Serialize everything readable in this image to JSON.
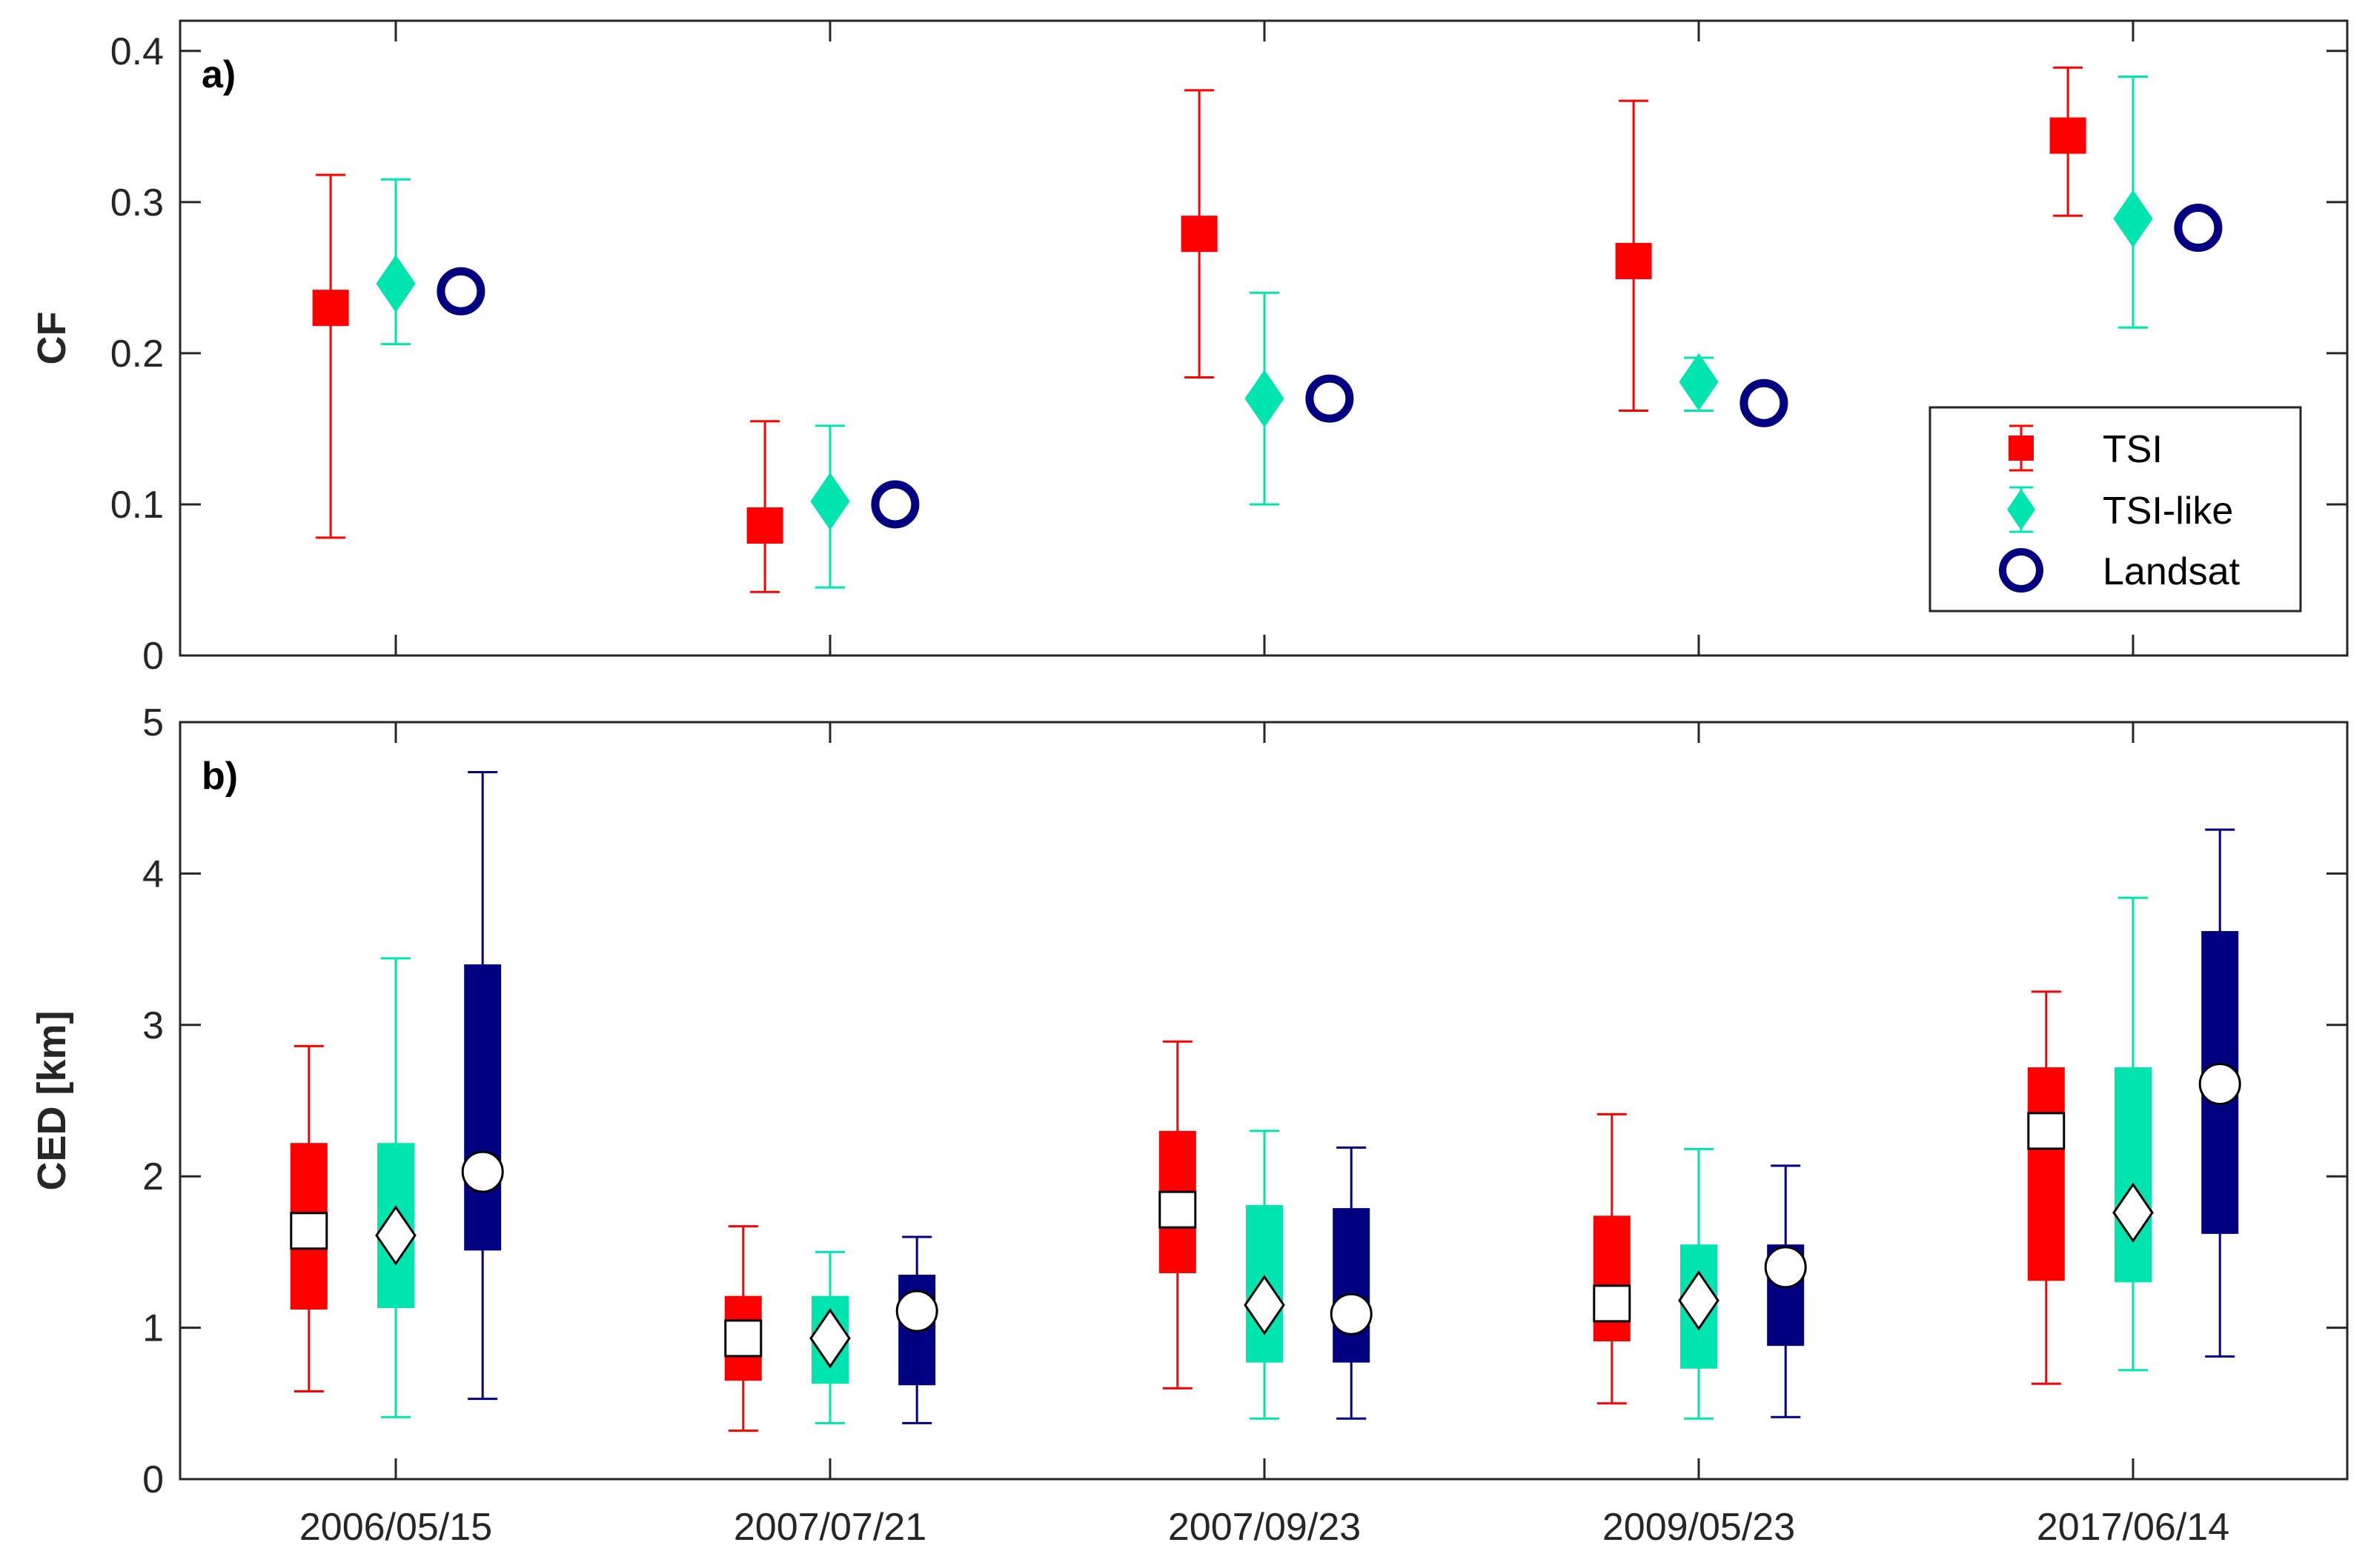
{
  "chart_data": [
    {
      "panel": "a)",
      "type": "scatter",
      "ylabel": "CF",
      "xlabel": "",
      "ylim": [
        0,
        0.42
      ],
      "yticks": [
        0,
        0.1,
        0.2,
        0.3,
        0.4
      ],
      "ytick_labels": [
        "0",
        "0.1",
        "0.2",
        "0.3",
        "0.4"
      ],
      "categories": [
        "2006/05/15",
        "2007/07/21",
        "2007/09/23",
        "2009/05/23",
        "2017/06/14"
      ],
      "legend_position": "lower-right",
      "series": [
        {
          "name": "TSI",
          "color": "#ff0000",
          "marker": "square",
          "offset": -0.3,
          "values": [
            0.23,
            0.086,
            0.279,
            0.261,
            0.344
          ],
          "err_low": [
            0.078,
            0.042,
            0.184,
            0.162,
            0.291
          ],
          "err_high": [
            0.318,
            0.155,
            0.374,
            0.367,
            0.389
          ]
        },
        {
          "name": "TSI-like",
          "color": "#00e5b0",
          "marker": "diamond",
          "offset": 0,
          "values": [
            0.246,
            0.102,
            0.17,
            0.181,
            0.289
          ],
          "err_low": [
            0.206,
            0.045,
            0.1,
            0.162,
            0.217
          ],
          "err_high": [
            0.315,
            0.152,
            0.24,
            0.197,
            0.383
          ]
        },
        {
          "name": "Landsat",
          "color": "#000080",
          "marker": "circle-open",
          "offset": 0.3,
          "values": [
            0.241,
            0.1,
            0.17,
            0.167,
            0.283
          ],
          "err_low": [],
          "err_high": []
        }
      ]
    },
    {
      "panel": "b)",
      "type": "box",
      "ylabel": "CED [km]",
      "xlabel": "",
      "ylim": [
        0,
        5
      ],
      "yticks": [
        0,
        1,
        2,
        3,
        4,
        5
      ],
      "ytick_labels": [
        "0",
        "1",
        "2",
        "3",
        "4",
        "5"
      ],
      "categories": [
        "2006/05/15",
        "2007/07/21",
        "2007/09/23",
        "2009/05/23",
        "2017/06/14"
      ],
      "series": [
        {
          "name": "TSI",
          "color": "#ff0000",
          "marker": "square",
          "offset": -0.4,
          "whisker_low": [
            0.58,
            0.32,
            0.6,
            0.5,
            0.63
          ],
          "q1": [
            1.12,
            0.65,
            1.36,
            0.91,
            1.31
          ],
          "median": [
            1.64,
            0.93,
            1.78,
            1.16,
            2.3
          ],
          "q3": [
            2.22,
            1.21,
            2.3,
            1.74,
            2.72
          ],
          "whisker_high": [
            2.86,
            1.67,
            2.89,
            2.41,
            3.22
          ]
        },
        {
          "name": "TSI-like",
          "color": "#00e5b0",
          "marker": "diamond",
          "offset": 0,
          "whisker_low": [
            0.41,
            0.37,
            0.4,
            0.4,
            0.72
          ],
          "q1": [
            1.13,
            0.63,
            0.77,
            0.73,
            1.3
          ],
          "median": [
            1.61,
            0.93,
            1.15,
            1.18,
            1.76
          ],
          "q3": [
            2.22,
            1.21,
            1.81,
            1.55,
            2.72
          ],
          "whisker_high": [
            3.44,
            1.5,
            2.3,
            2.18,
            3.84
          ]
        },
        {
          "name": "Landsat",
          "color": "#000080",
          "marker": "circle",
          "offset": 0.4,
          "whisker_low": [
            0.53,
            0.37,
            0.4,
            0.41,
            0.81
          ],
          "q1": [
            1.51,
            0.62,
            0.77,
            0.88,
            1.62
          ],
          "median": [
            2.03,
            1.11,
            1.09,
            1.4,
            2.61
          ],
          "q3": [
            3.4,
            1.35,
            1.79,
            1.55,
            3.62
          ],
          "whisker_high": [
            4.67,
            1.6,
            2.19,
            2.07,
            4.29
          ]
        }
      ]
    }
  ]
}
